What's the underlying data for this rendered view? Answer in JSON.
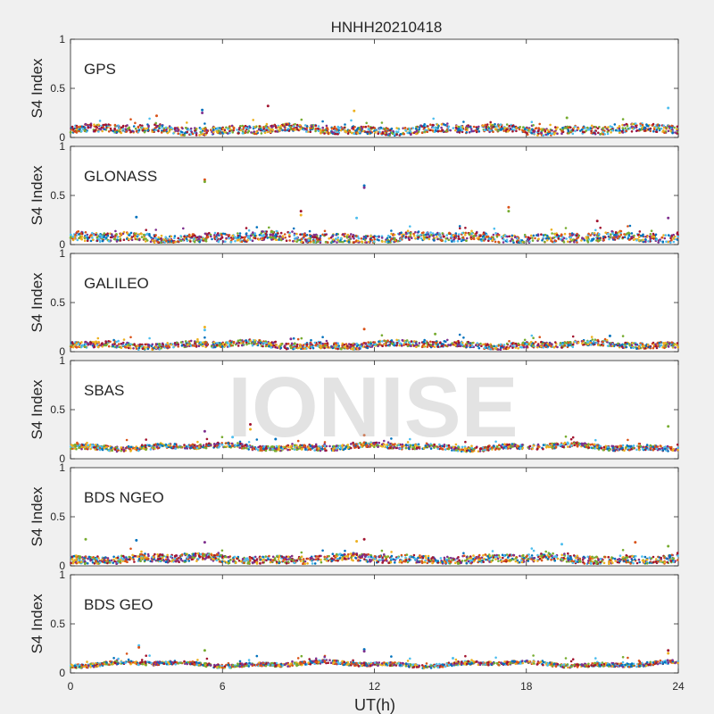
{
  "watermark": "IONISE",
  "chart_data": {
    "type": "scatter",
    "title": "HNHH20210418",
    "xlabel": "UT(h)",
    "ylabel": "S4 Index",
    "xlim": [
      0,
      24
    ],
    "ylim": [
      0,
      1
    ],
    "xticks": [
      0,
      6,
      12,
      18,
      24
    ],
    "yticks": [
      0,
      0.5,
      1
    ],
    "ytick_labels": [
      "0",
      "0.5",
      "1"
    ],
    "grid": false,
    "colors": [
      "#0072BD",
      "#D95319",
      "#EDB120",
      "#7E2F8E",
      "#77AC30",
      "#4DBEEE",
      "#A2142F"
    ],
    "panels": [
      {
        "label": "GPS",
        "baseline": 0.08,
        "noise": 0.04,
        "outliers": [
          [
            5.2,
            0.28
          ],
          [
            5.2,
            0.25
          ],
          [
            7.8,
            0.32
          ],
          [
            11.2,
            0.27
          ],
          [
            23.6,
            0.3
          ],
          [
            3.4,
            0.22
          ],
          [
            19.6,
            0.2
          ]
        ]
      },
      {
        "label": "GLONASS",
        "baseline": 0.07,
        "noise": 0.045,
        "outliers": [
          [
            5.3,
            0.66
          ],
          [
            5.3,
            0.64
          ],
          [
            11.6,
            0.6
          ],
          [
            11.6,
            0.58
          ],
          [
            9.1,
            0.34
          ],
          [
            9.1,
            0.3
          ],
          [
            11.3,
            0.27
          ],
          [
            17.3,
            0.38
          ],
          [
            17.3,
            0.34
          ],
          [
            2.6,
            0.28
          ],
          [
            23.6,
            0.27
          ],
          [
            20.8,
            0.24
          ]
        ]
      },
      {
        "label": "GALILEO",
        "baseline": 0.07,
        "noise": 0.03,
        "outliers": [
          [
            5.3,
            0.25
          ],
          [
            5.3,
            0.22
          ],
          [
            11.6,
            0.23
          ],
          [
            14.4,
            0.18
          ],
          [
            21.3,
            0.16
          ],
          [
            8.7,
            0.13
          ]
        ]
      },
      {
        "label": "SBAS",
        "baseline": 0.12,
        "noise": 0.025,
        "outliers": [
          [
            5.3,
            0.28
          ],
          [
            7.1,
            0.35
          ],
          [
            7.1,
            0.3
          ],
          [
            6.4,
            0.22
          ],
          [
            11.6,
            0.24
          ],
          [
            23.6,
            0.33
          ],
          [
            8.1,
            0.2
          ]
        ]
      },
      {
        "label": "BDS NGEO",
        "baseline": 0.07,
        "noise": 0.04,
        "outliers": [
          [
            0.6,
            0.27
          ],
          [
            2.6,
            0.26
          ],
          [
            5.3,
            0.24
          ],
          [
            11.6,
            0.27
          ],
          [
            11.3,
            0.25
          ],
          [
            19.4,
            0.22
          ],
          [
            22.3,
            0.24
          ],
          [
            23.6,
            0.2
          ]
        ]
      },
      {
        "label": "BDS GEO",
        "baseline": 0.09,
        "noise": 0.018,
        "outliers": [
          [
            2.7,
            0.28
          ],
          [
            2.7,
            0.26
          ],
          [
            5.3,
            0.23
          ],
          [
            11.6,
            0.24
          ],
          [
            11.6,
            0.22
          ],
          [
            23.6,
            0.23
          ],
          [
            23.6,
            0.2
          ],
          [
            15.1,
            0.15
          ]
        ]
      }
    ]
  }
}
